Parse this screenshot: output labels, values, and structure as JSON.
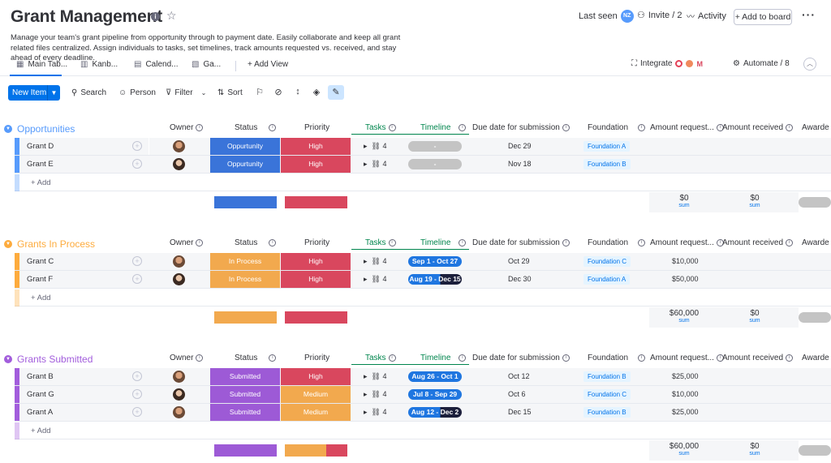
{
  "header": {
    "title": "Grant Management",
    "last_seen_label": "Last seen",
    "last_seen_initials": "NZ",
    "invite_label": "Invite / 2",
    "activity_label": "Activity",
    "add_to_board_label": "+ Add to board",
    "description": "Manage your team's grant pipeline from opportunity through to payment date. Easily collaborate and keep all grant related files centralized. Assign individuals to tasks, set timelines, track amounts requested vs. received, and stay ahead of every deadline."
  },
  "tabs": [
    {
      "label": "Main Tab...",
      "icon": "table-icon"
    },
    {
      "label": "Kanb...",
      "icon": "kanban-icon"
    },
    {
      "label": "Calend...",
      "icon": "calendar-icon"
    },
    {
      "label": "Ga...",
      "icon": "gantt-icon"
    }
  ],
  "add_view_label": "+ Add View",
  "integrate_label": "Integrate",
  "automate_label": "Automate / 8",
  "toolbar": {
    "new_item": "New Item",
    "search": "Search",
    "person": "Person",
    "filter": "Filter",
    "sort": "Sort"
  },
  "columns": {
    "owner": "Owner",
    "status": "Status",
    "priority": "Priority",
    "tasks": "Tasks",
    "timeline": "Timeline",
    "due": "Due date for submission",
    "foundation": "Foundation",
    "amount_requested": "Amount request...",
    "amount_received": "Amount received",
    "awarded": "Awarde"
  },
  "add_row_label": "+ Add",
  "sum_label": "sum",
  "colors": {
    "opportunities": "#579bfc",
    "in_process": "#fdab3d",
    "submitted": "#a25ddc",
    "status_opportunity": "#3a74d9",
    "status_in_process": "#f2a94e",
    "status_submitted": "#9d5ad6",
    "priority_high": "#d9475e",
    "priority_medium": "#f2a94e",
    "timeline_blue": "#1f76e0",
    "timeline_empty": "#c4c4c4"
  },
  "groups": [
    {
      "title": "Opportunities",
      "color": "#579bfc",
      "rows": [
        {
          "name": "Grant D",
          "status": "Oppurtunity",
          "priority": "High",
          "tasks": "4",
          "timeline": "-",
          "due": "Dec 29",
          "foundation": "Foundation A",
          "amount": ""
        },
        {
          "name": "Grant E",
          "status": "Oppurtunity",
          "priority": "High",
          "tasks": "4",
          "timeline": "-",
          "due": "Nov 18",
          "foundation": "Foundation B",
          "amount": ""
        }
      ],
      "sum_requested": "$0",
      "sum_received": "$0"
    },
    {
      "title": "Grants In Process",
      "color": "#fdab3d",
      "rows": [
        {
          "name": "Grant C",
          "status": "In Process",
          "priority": "High",
          "tasks": "4",
          "timeline": "Sep 1 - Oct 27",
          "due": "Oct 29",
          "foundation": "Foundation C",
          "amount": "$10,000"
        },
        {
          "name": "Grant F",
          "status": "In Process",
          "priority": "High",
          "tasks": "4",
          "timeline": "Aug 19 - Dec 15",
          "due": "Dec 30",
          "foundation": "Foundation A",
          "amount": "$50,000"
        }
      ],
      "sum_requested": "$60,000",
      "sum_received": "$0"
    },
    {
      "title": "Grants Submitted",
      "color": "#a25ddc",
      "rows": [
        {
          "name": "Grant B",
          "status": "Submitted",
          "priority": "High",
          "tasks": "4",
          "timeline": "Aug 26 - Oct 1",
          "due": "Oct 12",
          "foundation": "Foundation B",
          "amount": "$25,000"
        },
        {
          "name": "Grant G",
          "status": "Submitted",
          "priority": "Medium",
          "tasks": "4",
          "timeline": "Jul 8 - Sep 29",
          "due": "Oct 6",
          "foundation": "Foundation C",
          "amount": "$10,000"
        },
        {
          "name": "Grant A",
          "status": "Submitted",
          "priority": "Medium",
          "tasks": "4",
          "timeline": "Aug 12 - Dec 2",
          "due": "Dec 15",
          "foundation": "Foundation B",
          "amount": "$25,000"
        }
      ],
      "sum_requested": "$60,000",
      "sum_received": "$0"
    }
  ]
}
